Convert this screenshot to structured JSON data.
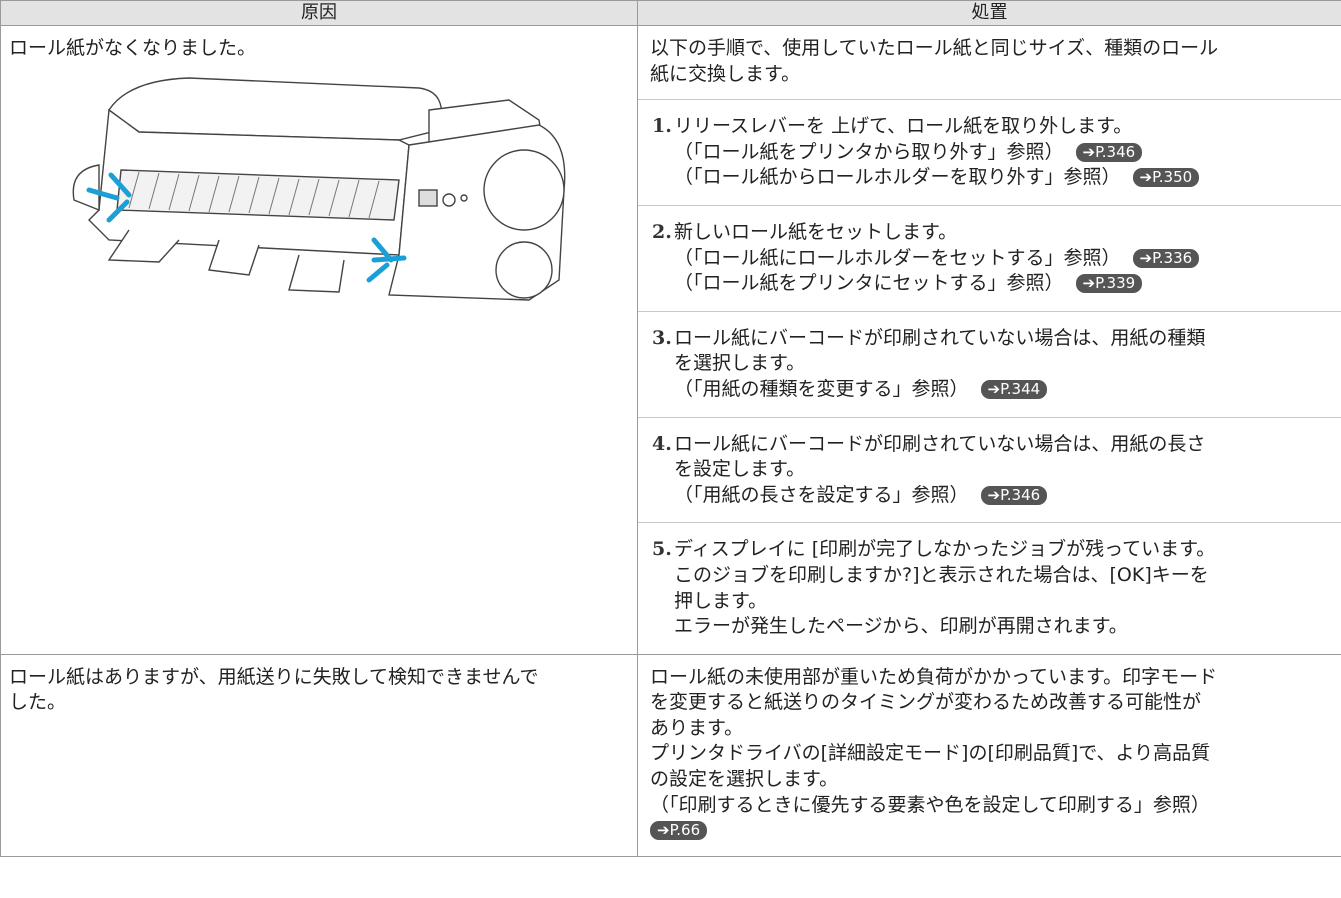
{
  "table": {
    "header": [
      "原因",
      "処置"
    ],
    "rows": [
      {
        "cause": [
          "ロール紙がなくなりました。"
        ],
        "remedy": {
          "intro": [
            "以下の手順で、使用していたロール紙と同じサイズ、種類のロール",
            "紙に交換します。"
          ],
          "steps": [
            {
              "number": "1.",
              "lines": [
                {
                  "text": "リリースレバーを 上げて、ロール紙を取り外します。"
                },
                {
                  "text": "（「ロール紙をプリンタから取り外す」参照）",
                  "link": "➔P.346"
                },
                {
                  "text": "（「ロール紙からロールホルダーを取り外す」参照）",
                  "link": "➔P.350"
                }
              ]
            },
            {
              "number": "2.",
              "lines": [
                {
                  "text": "新しいロール紙をセットします。"
                },
                {
                  "text": "（「ロール紙にロールホルダーをセットする」参照）",
                  "link": "➔P.336"
                },
                {
                  "text": "（「ロール紙をプリンタにセットする」参照）",
                  "link": "➔P.339"
                }
              ]
            },
            {
              "number": "3.",
              "lines": [
                {
                  "text": "ロール紙にバーコードが印刷されていない場合は、用紙の種類"
                },
                {
                  "text": "を選択します。"
                },
                {
                  "text": "（「用紙の種類を変更する」参照）",
                  "link": "➔P.344"
                }
              ]
            },
            {
              "number": "4.",
              "lines": [
                {
                  "text": "ロール紙にバーコードが印刷されていない場合は、用紙の長さ"
                },
                {
                  "text": "を設定します。"
                },
                {
                  "text": "（「用紙の長さを設定する」参照）",
                  "link": "➔P.346"
                }
              ]
            },
            {
              "number": "5.",
              "lines": [
                {
                  "text": "ディスプレイに [印刷が完了しなかったジョブが残っています。"
                },
                {
                  "text": "このジョブを印刷しますか?]と表示された場合は、[OK]キーを"
                },
                {
                  "text": "押します。"
                },
                {
                  "text": "エラーが発生したページから、印刷が再開されます。"
                }
              ]
            }
          ]
        }
      },
      {
        "cause": [
          "ロール紙はありますが、用紙送りに失敗して検知できませんで",
          "した。"
        ],
        "remedy": {
          "intro": [
            "ロール紙の未使用部が重いため負荷がかかっています。印字モード",
            "を変更すると紙送りのタイミングが変わるため改善する可能性が",
            "あります。",
            "プリンタドライバの[詳細設定モード]の[印刷品質]で、より高品質",
            "の設定を選択します。",
            "（「印刷するときに優先する要素や色を設定して印刷する」参照）"
          ],
          "link": "➔P.66"
        }
      }
    ]
  }
}
